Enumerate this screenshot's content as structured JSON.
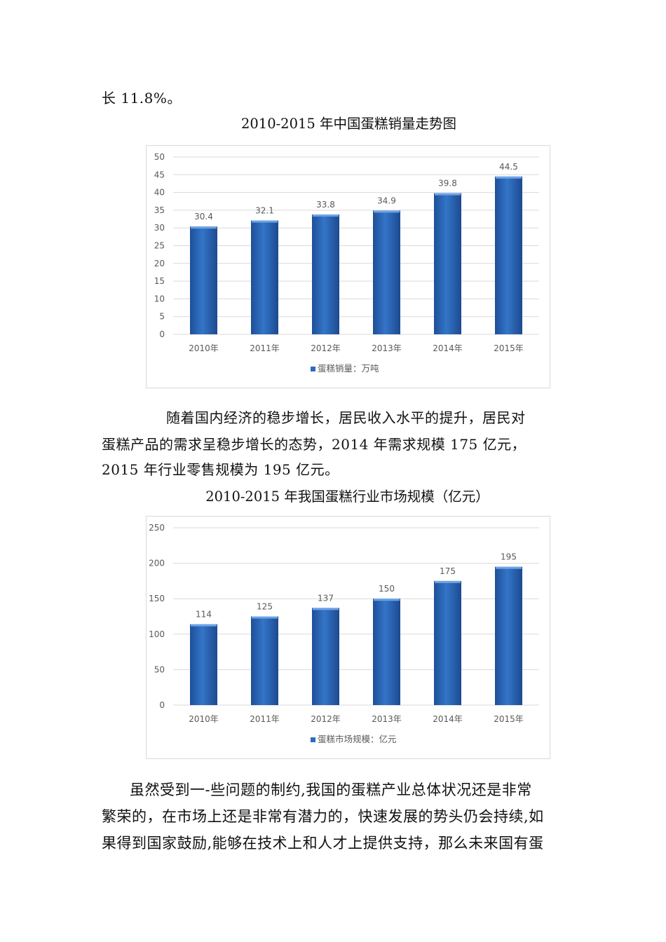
{
  "text_top": "长 11.8%。",
  "chart1_title": "2010-2015 年中国蛋糕销量走势图",
  "paragraph2": [
    "随着国内经济的稳步增长，居民收入水平的提升，居民对",
    "蛋糕产品的需求呈稳步增长的态势，2014 年需求规模 175 亿元，",
    "2015 年行业零售规模为 195 亿元。"
  ],
  "chart2_title": "2010-2015 年我国蛋糕行业市场规模（亿元）",
  "paragraph3": [
    "虽然受到一-些问题的制约,我国的蛋糕产业总体状况还是非常",
    "繁荣的，在市场上还是非常有潜力的，快速发展的势头仍会持续,如",
    "果得到国家鼓励,能够在技术上和人才上提供支持，那么未来国有蛋"
  ],
  "chart_data": [
    {
      "type": "bar",
      "title": "",
      "categories": [
        "2010年",
        "2011年",
        "2012年",
        "2013年",
        "2014年",
        "2015年"
      ],
      "series": [
        {
          "name": "蛋糕销量：万吨",
          "values": [
            30.4,
            32.1,
            33.8,
            34.9,
            39.8,
            44.5
          ]
        }
      ],
      "ylim": [
        0,
        50
      ],
      "yticks": [
        0,
        5,
        10,
        15,
        20,
        25,
        30,
        35,
        40,
        45,
        50
      ],
      "grid": true,
      "legend": "bottom",
      "color": "#2e6bbd"
    },
    {
      "type": "bar",
      "title": "",
      "categories": [
        "2010年",
        "2011年",
        "2012年",
        "2013年",
        "2014年",
        "2015年"
      ],
      "series": [
        {
          "name": "蛋糕市场规模：亿元",
          "values": [
            114,
            125,
            137,
            150,
            175,
            195
          ]
        }
      ],
      "ylim": [
        0,
        250
      ],
      "yticks": [
        0,
        50,
        100,
        150,
        200,
        250
      ],
      "grid": true,
      "legend": "bottom",
      "color": "#2e6bbd"
    }
  ]
}
